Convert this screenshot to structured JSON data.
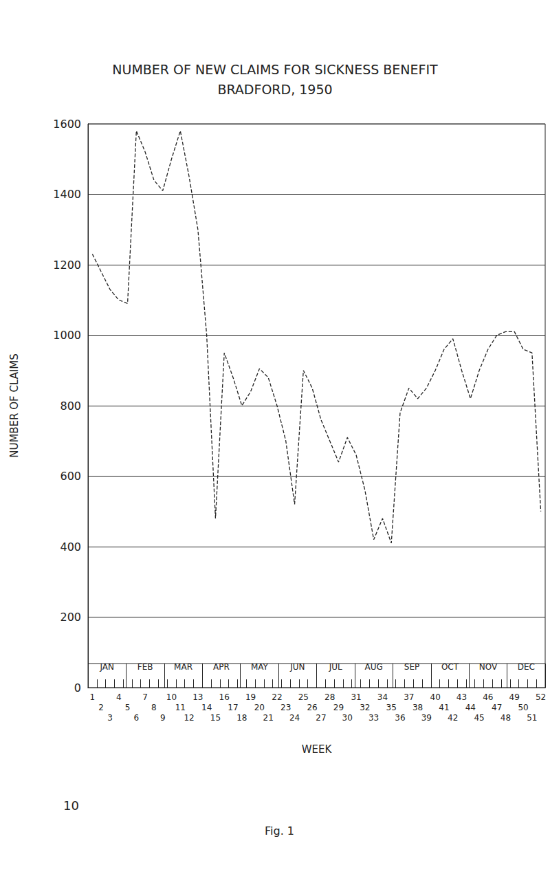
{
  "chart_data": {
    "type": "line",
    "title": "NUMBER OF NEW CLAIMS FOR SICKNESS BENEFIT",
    "subtitle": "BRADFORD, 1950",
    "x_label": "WEEK",
    "y_label": "NUMBER OF CLAIMS",
    "categories": [
      "1",
      "2",
      "3",
      "4",
      "5",
      "6",
      "7",
      "8",
      "9",
      "10",
      "11",
      "12",
      "13",
      "14",
      "15",
      "16",
      "17",
      "18",
      "19",
      "20",
      "21",
      "22",
      "23",
      "24",
      "25",
      "26",
      "27",
      "28",
      "29",
      "30",
      "31",
      "32",
      "33",
      "34",
      "35",
      "36",
      "37",
      "38",
      "39",
      "40",
      "41",
      "42",
      "43",
      "44",
      "45",
      "46",
      "47",
      "48",
      "49",
      "50",
      "51",
      "52"
    ],
    "month_categories": [
      "JAN",
      "FEB",
      "MAR",
      "APR",
      "MAY",
      "JUN",
      "JUL",
      "AUG",
      "SEP",
      "OCT",
      "NOV",
      "DEC"
    ],
    "values": [
      1230,
      1180,
      1130,
      1100,
      1090,
      1580,
      1520,
      1440,
      1410,
      1500,
      1580,
      1450,
      1300,
      1000,
      480,
      950,
      880,
      800,
      840,
      905,
      880,
      800,
      700,
      520,
      900,
      850,
      760,
      700,
      640,
      710,
      660,
      560,
      420,
      480,
      410,
      780,
      850,
      820,
      850,
      900,
      960,
      990,
      900,
      820,
      900,
      960,
      1000,
      1010,
      1010,
      960,
      950,
      500
    ],
    "color": "#222222",
    "line_style": "dashed",
    "ylim": [
      0,
      1600
    ],
    "yticks": [
      0,
      200,
      400,
      600,
      800,
      1000,
      1200,
      1400,
      1600
    ],
    "grid": true,
    "page_number": "10",
    "figure_label": "Fig. 1"
  }
}
